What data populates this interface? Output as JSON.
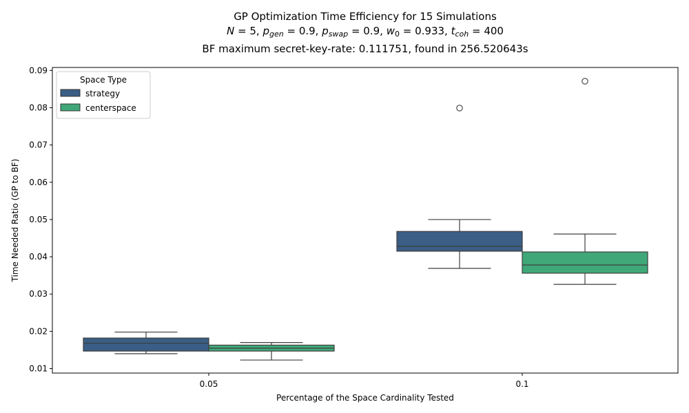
{
  "chart_data": {
    "type": "box",
    "title": "GP Optimization Time Efficiency for 15 Simulations",
    "subtitle": "N = 5, p_gen = 0.9, p_swap = 0.9, w_0 = 0.933, t_coh = 400",
    "subtitle_parts": [
      {
        "v": "N",
        "i": true
      },
      {
        "v": " = 5, "
      },
      {
        "v": "p",
        "i": true
      },
      {
        "v": "gen",
        "i": true,
        "sub": true
      },
      {
        "v": " = 0.9, "
      },
      {
        "v": "p",
        "i": true
      },
      {
        "v": "swap",
        "i": true,
        "sub": true
      },
      {
        "v": " = 0.9, "
      },
      {
        "v": "w",
        "i": true
      },
      {
        "v": "0",
        "sub": true
      },
      {
        "v": " = 0.933, "
      },
      {
        "v": "t",
        "i": true
      },
      {
        "v": "coh",
        "i": true,
        "sub": true
      },
      {
        "v": " = 400"
      }
    ],
    "subtitle2": "BF maximum secret-key-rate: 0.111751, found in 256.520643s",
    "xlabel": "Percentage of the Space Cardinality Tested",
    "ylabel": "Time Needed Ratio (GP to BF)",
    "categories": [
      "0.05",
      "0.1"
    ],
    "ylim": [
      0.0088,
      0.0908
    ],
    "yticks": [
      0.01,
      0.02,
      0.03,
      0.04,
      0.05,
      0.06,
      0.07,
      0.08,
      0.09
    ],
    "ytick_labels": [
      "0.01",
      "0.02",
      "0.03",
      "0.04",
      "0.05",
      "0.06",
      "0.07",
      "0.08",
      "0.09"
    ],
    "legend": {
      "title": "Space Type",
      "position": "top-left"
    },
    "series": [
      {
        "name": "strategy",
        "color": "#3a5e85",
        "boxes": [
          {
            "category": "0.05",
            "whisker_low": 0.014,
            "q1": 0.0147,
            "median": 0.0168,
            "q3": 0.0182,
            "whisker_high": 0.0198,
            "outliers": []
          },
          {
            "category": "0.1",
            "whisker_low": 0.0369,
            "q1": 0.0415,
            "median": 0.0428,
            "q3": 0.0468,
            "whisker_high": 0.05,
            "outliers": [
              0.0799
            ]
          }
        ]
      },
      {
        "name": "centerspace",
        "color": "#40a878",
        "boxes": [
          {
            "category": "0.05",
            "whisker_low": 0.0123,
            "q1": 0.0147,
            "median": 0.0155,
            "q3": 0.0163,
            "whisker_high": 0.017,
            "outliers": []
          },
          {
            "category": "0.1",
            "whisker_low": 0.0326,
            "q1": 0.0356,
            "median": 0.0378,
            "q3": 0.0413,
            "whisker_high": 0.0461,
            "outliers": [
              0.0871
            ]
          }
        ]
      }
    ]
  }
}
